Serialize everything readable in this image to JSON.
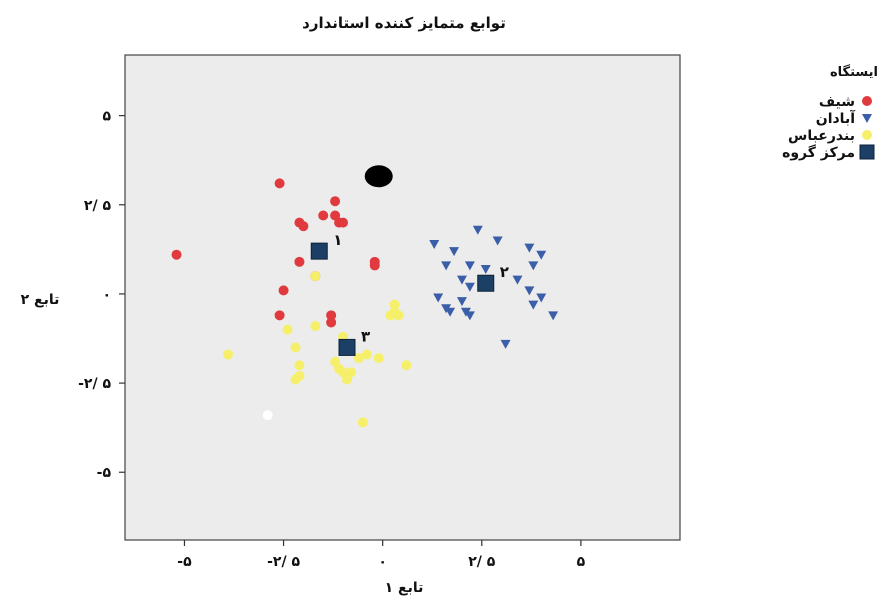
{
  "chart_data": {
    "type": "scatter",
    "title": "توابع متمایز کننده استاندارد",
    "xlabel": "تابع ۱",
    "ylabel": "تابع ۲",
    "xlim": [
      -6.5,
      7.5
    ],
    "ylim": [
      -6.9,
      6.7
    ],
    "x_ticks": [
      -5,
      -2.5,
      0,
      2.5,
      5
    ],
    "x_tick_labels": [
      "-۵",
      "-۲/ ۵",
      "۰",
      "۲/ ۵",
      "۵"
    ],
    "y_ticks": [
      5,
      2.5,
      0,
      -2.5,
      -5
    ],
    "y_tick_labels": [
      "۵",
      "۲/ ۵",
      "۰",
      "-۲/ ۵",
      "-۵"
    ],
    "grid": false,
    "plot_background": "#ececec",
    "legend": {
      "title": "ایستگاه",
      "position": "top-right",
      "items": [
        {
          "label": "شیف",
          "marker": "circle",
          "color": "#e03a3e"
        },
        {
          "label": "آبادان",
          "marker": "triangle-down",
          "color": "#3b5ea8"
        },
        {
          "label": "بندرعباس",
          "marker": "circle",
          "color": "#f6ef6a"
        },
        {
          "label": "مرکز گروه",
          "marker": "square",
          "color": "#1c3f66"
        }
      ]
    },
    "series": [
      {
        "name": "شیف",
        "marker": "circle",
        "color": "#e03a3e",
        "points": [
          [
            -2.6,
            3.1
          ],
          [
            -5.2,
            1.1
          ],
          [
            -2.1,
            2.0
          ],
          [
            -2.0,
            1.9
          ],
          [
            -1.5,
            2.2
          ],
          [
            -1.2,
            2.6
          ],
          [
            -1.2,
            2.2
          ],
          [
            -1.1,
            2.0
          ],
          [
            -1.0,
            2.0
          ],
          [
            -2.1,
            0.9
          ],
          [
            -1.7,
            0.5
          ],
          [
            -2.5,
            0.1
          ],
          [
            -2.6,
            -0.6
          ],
          [
            -1.3,
            -0.6
          ],
          [
            -1.3,
            -0.8
          ],
          [
            -0.2,
            0.9
          ],
          [
            -0.2,
            0.8
          ]
        ]
      },
      {
        "name": "آبادان",
        "marker": "triangle-down",
        "color": "#3b5ea8",
        "points": [
          [
            1.3,
            1.4
          ],
          [
            1.8,
            1.2
          ],
          [
            2.4,
            1.8
          ],
          [
            2.9,
            1.5
          ],
          [
            3.7,
            1.3
          ],
          [
            4.0,
            1.1
          ],
          [
            3.8,
            0.8
          ],
          [
            1.6,
            0.8
          ],
          [
            2.2,
            0.8
          ],
          [
            2.6,
            0.7
          ],
          [
            2.0,
            0.4
          ],
          [
            2.2,
            0.2
          ],
          [
            3.4,
            0.4
          ],
          [
            3.7,
            0.1
          ],
          [
            4.0,
            -0.1
          ],
          [
            1.4,
            -0.1
          ],
          [
            1.6,
            -0.4
          ],
          [
            2.0,
            -0.2
          ],
          [
            1.7,
            -0.5
          ],
          [
            2.1,
            -0.5
          ],
          [
            2.2,
            -0.6
          ],
          [
            3.8,
            -0.3
          ],
          [
            4.3,
            -0.6
          ],
          [
            3.1,
            -1.4
          ]
        ]
      },
      {
        "name": "بندرعباس",
        "marker": "circle",
        "color": "#f6ef6a",
        "points": [
          [
            -1.7,
            0.5
          ],
          [
            0.3,
            -0.3
          ],
          [
            0.3,
            -0.5
          ],
          [
            0.2,
            -0.6
          ],
          [
            0.4,
            -0.6
          ],
          [
            -2.4,
            -1.0
          ],
          [
            -1.7,
            -0.9
          ],
          [
            -1.0,
            -1.2
          ],
          [
            -3.9,
            -1.7
          ],
          [
            -2.2,
            -1.5
          ],
          [
            -2.1,
            -2.0
          ],
          [
            -2.1,
            -2.3
          ],
          [
            -1.1,
            -2.1
          ],
          [
            -1.0,
            -2.2
          ],
          [
            -0.8,
            -2.2
          ],
          [
            -0.6,
            -1.8
          ],
          [
            -0.4,
            -1.7
          ],
          [
            -0.1,
            -1.8
          ],
          [
            0.6,
            -2.0
          ],
          [
            -0.5,
            -3.6
          ],
          [
            -1.2,
            -1.9
          ],
          [
            -0.9,
            -2.4
          ],
          [
            -2.2,
            -2.4
          ]
        ]
      }
    ],
    "centroids": [
      {
        "label": "۱",
        "x": -1.6,
        "y": 1.2,
        "color": "#1c3f66"
      },
      {
        "label": "۲",
        "x": 2.6,
        "y": 0.3,
        "color": "#1c3f66"
      },
      {
        "label": "۳",
        "x": -0.9,
        "y": -1.5,
        "color": "#1c3f66"
      }
    ],
    "extra_marks": [
      {
        "marker": "ellipse",
        "color": "#000000",
        "x": -0.1,
        "y": 3.3
      },
      {
        "marker": "circle",
        "color": "#ffffff",
        "x": -2.9,
        "y": -3.4
      }
    ]
  }
}
